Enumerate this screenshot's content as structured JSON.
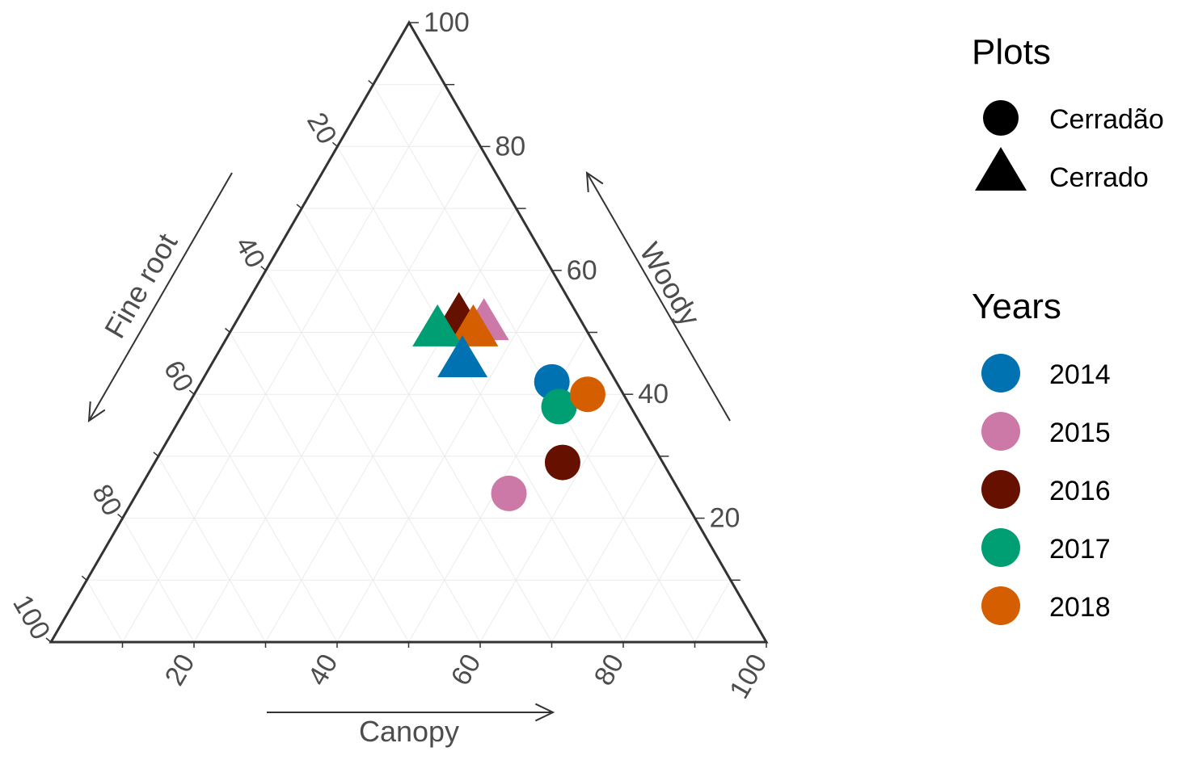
{
  "chart_data": {
    "type": "scatter",
    "subtype": "ternary",
    "axes": {
      "canopy": {
        "label": "Canopy",
        "ticks": [
          "20",
          "40",
          "60",
          "80",
          "100"
        ]
      },
      "woody": {
        "label": "Woody",
        "ticks": [
          "20",
          "40",
          "60",
          "80",
          "100"
        ]
      },
      "fine_root": {
        "label": "Fine root",
        "ticks": [
          "20",
          "40",
          "60",
          "80",
          "100"
        ]
      }
    },
    "grid": true,
    "legend_position": "right",
    "legends": {
      "plots": {
        "title": "Plots",
        "items": [
          {
            "label": "Cerradão",
            "shape": "circle"
          },
          {
            "label": "Cerrado",
            "shape": "triangle"
          }
        ]
      },
      "years": {
        "title": "Years",
        "items": [
          {
            "label": "2014",
            "color": "#0072B2"
          },
          {
            "label": "2015",
            "color": "#CC79A7"
          },
          {
            "label": "2016",
            "color": "#661100"
          },
          {
            "label": "2017",
            "color": "#009E73"
          },
          {
            "label": "2018",
            "color": "#D55E00"
          }
        ]
      }
    },
    "points": [
      {
        "plot": "Cerrado",
        "year": "2015",
        "canopy": 35,
        "woody": 51,
        "fine_root": 14
      },
      {
        "plot": "Cerrado",
        "year": "2016",
        "canopy": 31,
        "woody": 52,
        "fine_root": 17
      },
      {
        "plot": "Cerrado",
        "year": "2018",
        "canopy": 34,
        "woody": 50,
        "fine_root": 16
      },
      {
        "plot": "Cerrado",
        "year": "2017",
        "canopy": 29,
        "woody": 50,
        "fine_root": 21
      },
      {
        "plot": "Cerrado",
        "year": "2014",
        "canopy": 35,
        "woody": 45,
        "fine_root": 20
      },
      {
        "plot": "Cerradão",
        "year": "2014",
        "canopy": 49,
        "woody": 42,
        "fine_root": 9
      },
      {
        "plot": "Cerradão",
        "year": "2017",
        "canopy": 52,
        "woody": 38,
        "fine_root": 10
      },
      {
        "plot": "Cerradão",
        "year": "2018",
        "canopy": 55,
        "woody": 40,
        "fine_root": 5
      },
      {
        "plot": "Cerradão",
        "year": "2016",
        "canopy": 57,
        "woody": 29,
        "fine_root": 14
      },
      {
        "plot": "Cerradão",
        "year": "2015",
        "canopy": 52,
        "woody": 24,
        "fine_root": 24
      }
    ]
  }
}
